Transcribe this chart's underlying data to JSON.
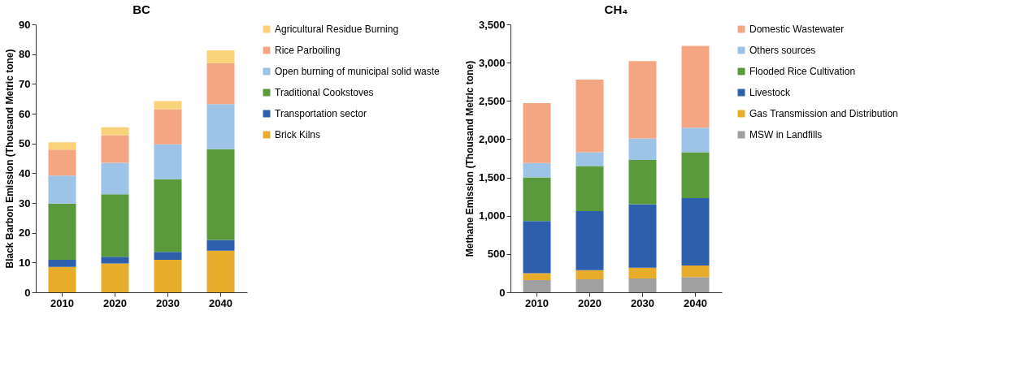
{
  "chart_data": [
    {
      "type": "bar",
      "title": "BC",
      "ylabel": "Black Barbon Emission (Thousand Metric tone)",
      "categories": [
        "2010",
        "2020",
        "2030",
        "2040"
      ],
      "stacked": true,
      "ylim": [
        0,
        90
      ],
      "yticks": [
        0,
        10,
        20,
        30,
        40,
        50,
        60,
        70,
        80,
        90
      ],
      "grid": false,
      "legend": "right",
      "series": [
        {
          "name": "Brick Kilns",
          "color": "#e6ac2a",
          "values": [
            8.5,
            9.7,
            10.9,
            14.0
          ]
        },
        {
          "name": "Transportation sector",
          "color": "#2e5fac",
          "values": [
            2.4,
            2.2,
            2.7,
            3.6
          ]
        },
        {
          "name": "Traditional Cookstoves",
          "color": "#5b9a3c",
          "values": [
            18.9,
            21.0,
            24.4,
            30.5
          ]
        },
        {
          "name": "Open burning of municipal solid waste",
          "color": "#9dc3e6",
          "values": [
            9.4,
            10.6,
            11.7,
            15.1
          ]
        },
        {
          "name": "Rice Parboiling",
          "color": "#f4a582",
          "values": [
            8.7,
            9.3,
            11.8,
            13.8
          ]
        },
        {
          "name": "Agricultural Residue Burning",
          "color": "#f9d27a",
          "values": [
            2.5,
            2.6,
            2.7,
            4.3
          ]
        }
      ]
    },
    {
      "type": "bar",
      "title": "CH₄",
      "ylabel": "Methane Emission (Thousand Metric tone)",
      "categories": [
        "2010",
        "2020",
        "2030",
        "2040"
      ],
      "stacked": true,
      "ylim": [
        0,
        3500
      ],
      "yticks": [
        0,
        500,
        {
          "value": 1000,
          "label": "1,000"
        },
        {
          "value": 1500,
          "label": "1,500"
        },
        {
          "value": 2000,
          "label": "2,000"
        },
        {
          "value": 2500,
          "label": "2,500"
        },
        {
          "value": 3000,
          "label": "3,000"
        },
        {
          "value": 3500,
          "label": "3,500"
        }
      ],
      "grid": false,
      "legend": "right",
      "series": [
        {
          "name": "MSW in Landfills",
          "color": "#a0a0a0",
          "values": [
            160,
            170,
            180,
            200
          ]
        },
        {
          "name": "Gas Transmission and Distribution",
          "color": "#e6ac2a",
          "values": [
            90,
            120,
            140,
            150
          ]
        },
        {
          "name": "Livestock",
          "color": "#2e5fac",
          "values": [
            680,
            770,
            830,
            880
          ]
        },
        {
          "name": "Flooded Rice Cultivation",
          "color": "#5b9a3c",
          "values": [
            570,
            590,
            580,
            600
          ]
        },
        {
          "name": "Others sources",
          "color": "#9dc3e6",
          "values": [
            190,
            180,
            280,
            320
          ]
        },
        {
          "name": "Domestic Wastewater",
          "color": "#f4a582",
          "values": [
            780,
            950,
            1010,
            1070
          ]
        }
      ]
    }
  ]
}
